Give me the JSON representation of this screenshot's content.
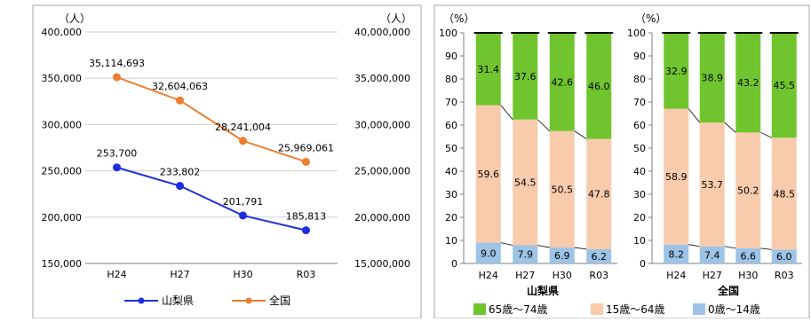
{
  "left_chart": {
    "unit_left": "（人）",
    "unit_right": "（人）",
    "legend": {
      "pref": "山梨県",
      "nation": "全国"
    }
  },
  "right_chart": {
    "unit_pref": "（%）",
    "unit_nation": "（%）",
    "group_labels": {
      "pref": "山梨県",
      "nation": "全国"
    },
    "legend": {
      "elder": "65歳～74歳",
      "working": "15歳～64歳",
      "child": "0歳～14歳"
    }
  },
  "chart_data": [
    {
      "type": "line",
      "categories": [
        "H24",
        "H27",
        "H30",
        "R03"
      ],
      "ylim": [
        150000,
        400000
      ],
      "ylim_right": [
        15000000,
        40000000
      ],
      "yticks": [
        "400,000",
        "350,000",
        "300,000",
        "250,000",
        "200,000",
        "150,000"
      ],
      "yticks_right": [
        "40,000,000",
        "35,000,000",
        "30,000,000",
        "25,000,000",
        "20,000,000",
        "15,000,000"
      ],
      "grid": true,
      "legend_position": "bottom",
      "series": [
        {
          "name": "山梨県",
          "axis": "left",
          "color": "#1f2fe0",
          "values": [
            253700,
            233802,
            201791,
            185813
          ],
          "labels": [
            "253,700",
            "233,802",
            "201,791",
            "185,813"
          ]
        },
        {
          "name": "全国",
          "axis": "right",
          "color": "#ed7d31",
          "values": [
            35114693,
            32604063,
            28241004,
            25969061
          ],
          "labels": [
            "35,114,693",
            "32,604,063",
            "28,241,004",
            "25,969,061"
          ]
        }
      ]
    },
    {
      "type": "bar",
      "stacked": true,
      "title": "山梨県",
      "categories": [
        "H24",
        "H27",
        "H30",
        "R03"
      ],
      "ylim": [
        0,
        100
      ],
      "yticks": [
        "100",
        "90",
        "80",
        "70",
        "60",
        "50",
        "40",
        "30",
        "20",
        "10",
        "0"
      ],
      "series": [
        {
          "name": "0歳～14歳",
          "color": "#9dc3e6",
          "values": [
            9.0,
            7.9,
            6.9,
            6.2
          ],
          "labels": [
            "9.0",
            "7.9",
            "6.9",
            "6.2"
          ]
        },
        {
          "name": "15歳～64歳",
          "color": "#f8cbad",
          "values": [
            59.6,
            54.5,
            50.5,
            47.8
          ],
          "labels": [
            "59.6",
            "54.5",
            "50.5",
            "47.8"
          ]
        },
        {
          "name": "65歳～74歳",
          "color": "#70c52f",
          "values": [
            31.4,
            37.6,
            42.6,
            46.0
          ],
          "labels": [
            "31.4",
            "37.6",
            "42.6",
            "46.0"
          ]
        }
      ]
    },
    {
      "type": "bar",
      "stacked": true,
      "title": "全国",
      "categories": [
        "H24",
        "H27",
        "H30",
        "R03"
      ],
      "ylim": [
        0,
        100
      ],
      "yticks": [
        "100",
        "90",
        "80",
        "70",
        "60",
        "50",
        "40",
        "30",
        "20",
        "10",
        "0"
      ],
      "series": [
        {
          "name": "0歳～14歳",
          "color": "#9dc3e6",
          "values": [
            8.2,
            7.4,
            6.6,
            6.0
          ],
          "labels": [
            "8.2",
            "7.4",
            "6.6",
            "6.0"
          ]
        },
        {
          "name": "15歳～64歳",
          "color": "#f8cbad",
          "values": [
            58.9,
            53.7,
            50.2,
            48.5
          ],
          "labels": [
            "58.9",
            "53.7",
            "50.2",
            "48.5"
          ]
        },
        {
          "name": "65歳～74歳",
          "color": "#70c52f",
          "values": [
            32.9,
            38.9,
            43.2,
            45.5
          ],
          "labels": [
            "32.9",
            "38.9",
            "43.2",
            "45.5"
          ]
        }
      ]
    }
  ]
}
